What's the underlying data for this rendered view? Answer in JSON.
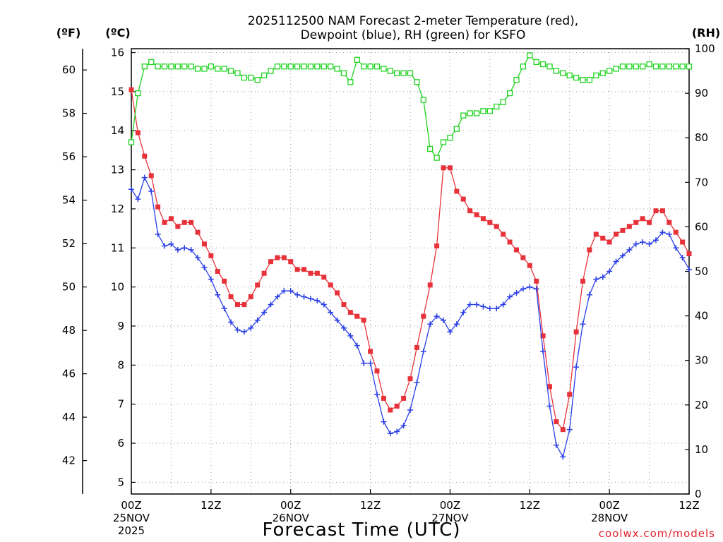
{
  "colors": {
    "temperature": "#e8323a",
    "dewpoint": "#2a3ee8",
    "rh": "#1ed21e",
    "grid": "#9a9a9a",
    "credit": "#e0202a"
  },
  "chart_data": {
    "type": "line",
    "title": "2025112500 NAM Forecast 2-meter Temperature (red),",
    "subtitle": "Dewpoint (blue), RH (green) for KSFO",
    "xlabel": "Forecast Time (UTC)",
    "credit": "coolwx.com/models",
    "axis_units": {
      "fahrenheit": "(ºF)",
      "celsius": "(ºC)",
      "rh": "(RH)"
    },
    "x_range_hours": [
      0,
      84
    ],
    "x_ticks": [
      {
        "hour": 0,
        "label": "00Z",
        "date": "25NOV",
        "year": "2025"
      },
      {
        "hour": 12,
        "label": "12Z",
        "date": "",
        "year": ""
      },
      {
        "hour": 24,
        "label": "00Z",
        "date": "26NOV",
        "year": ""
      },
      {
        "hour": 36,
        "label": "12Z",
        "date": "",
        "year": ""
      },
      {
        "hour": 48,
        "label": "00Z",
        "date": "27NOV",
        "year": ""
      },
      {
        "hour": 60,
        "label": "12Z",
        "date": "",
        "year": ""
      },
      {
        "hour": 72,
        "label": "00Z",
        "date": "28NOV",
        "year": ""
      },
      {
        "hour": 84,
        "label": "12Z",
        "date": "",
        "year": ""
      }
    ],
    "y_celsius_range": [
      4.7,
      16.1
    ],
    "y_celsius_ticks": [
      5,
      6,
      7,
      8,
      9,
      10,
      11,
      12,
      13,
      14,
      15,
      16
    ],
    "y_fahrenheit_ticks": [
      42,
      44,
      46,
      48,
      50,
      52,
      54,
      56,
      58,
      60
    ],
    "y_rh_range": [
      0,
      100
    ],
    "y_rh_ticks": [
      0,
      10,
      20,
      30,
      40,
      50,
      60,
      70,
      80,
      90,
      100
    ],
    "series": [
      {
        "name": "Temperature",
        "unit": "C",
        "marker": "filled-square",
        "values": [
          15.05,
          13.95,
          13.35,
          12.85,
          12.05,
          11.65,
          11.75,
          11.55,
          11.65,
          11.65,
          11.4,
          11.1,
          10.8,
          10.4,
          10.15,
          9.75,
          9.55,
          9.55,
          9.75,
          10.05,
          10.35,
          10.65,
          10.75,
          10.75,
          10.65,
          10.45,
          10.45,
          10.35,
          10.35,
          10.25,
          10.05,
          9.85,
          9.55,
          9.35,
          9.25,
          9.15,
          8.35,
          7.85,
          7.15,
          6.85,
          6.95,
          7.15,
          7.65,
          8.45,
          9.25,
          10.05,
          11.05,
          13.05,
          13.05,
          12.45,
          12.25,
          11.95,
          11.85,
          11.75,
          11.65,
          11.55,
          11.35,
          11.15,
          10.95,
          10.75,
          10.55,
          10.15,
          8.75,
          7.45,
          6.55,
          6.35,
          7.25,
          8.85,
          10.15,
          10.95,
          11.35,
          11.25,
          11.15,
          11.35,
          11.45,
          11.55,
          11.65,
          11.75,
          11.65,
          11.95,
          11.95,
          11.65,
          11.4,
          11.15,
          10.85
        ]
      },
      {
        "name": "Dewpoint",
        "unit": "C",
        "marker": "plus",
        "values": [
          12.5,
          12.25,
          12.8,
          12.45,
          11.35,
          11.05,
          11.1,
          10.95,
          11.0,
          10.95,
          10.75,
          10.5,
          10.2,
          9.8,
          9.45,
          9.1,
          8.9,
          8.85,
          8.95,
          9.15,
          9.35,
          9.55,
          9.75,
          9.9,
          9.9,
          9.8,
          9.75,
          9.7,
          9.65,
          9.55,
          9.35,
          9.15,
          8.95,
          8.75,
          8.5,
          8.05,
          8.05,
          7.25,
          6.55,
          6.25,
          6.3,
          6.45,
          6.85,
          7.55,
          8.35,
          9.05,
          9.25,
          9.15,
          8.85,
          9.05,
          9.35,
          9.55,
          9.55,
          9.5,
          9.45,
          9.45,
          9.55,
          9.75,
          9.85,
          9.95,
          10.0,
          9.95,
          8.35,
          6.95,
          5.95,
          5.65,
          6.35,
          7.95,
          9.05,
          9.8,
          10.2,
          10.25,
          10.4,
          10.65,
          10.8,
          10.95,
          11.1,
          11.15,
          11.1,
          11.2,
          11.4,
          11.35,
          11.0,
          10.75,
          10.45
        ]
      },
      {
        "name": "RH",
        "unit": "%",
        "marker": "open-square",
        "values": [
          79,
          90,
          96,
          97,
          96,
          96,
          96,
          96,
          96,
          96,
          95.5,
          95.5,
          96,
          95.5,
          95.5,
          95,
          94.5,
          93.5,
          93.5,
          93,
          94,
          95,
          96,
          96,
          96,
          96,
          96,
          96,
          96,
          96,
          96,
          95.5,
          94.5,
          92.5,
          97.5,
          96,
          96,
          96,
          95.5,
          95,
          94.5,
          94.5,
          94.5,
          92.5,
          88.5,
          77.5,
          75.5,
          79,
          80,
          82,
          85,
          85.5,
          85.5,
          86,
          86,
          87,
          88,
          90,
          93,
          96,
          98.5,
          97,
          96.5,
          96,
          95,
          94.5,
          94,
          93.5,
          93,
          93,
          94,
          94.5,
          95,
          95.5,
          96,
          96,
          96,
          96,
          96.5,
          96,
          96,
          96,
          96,
          96,
          96
        ]
      }
    ]
  }
}
